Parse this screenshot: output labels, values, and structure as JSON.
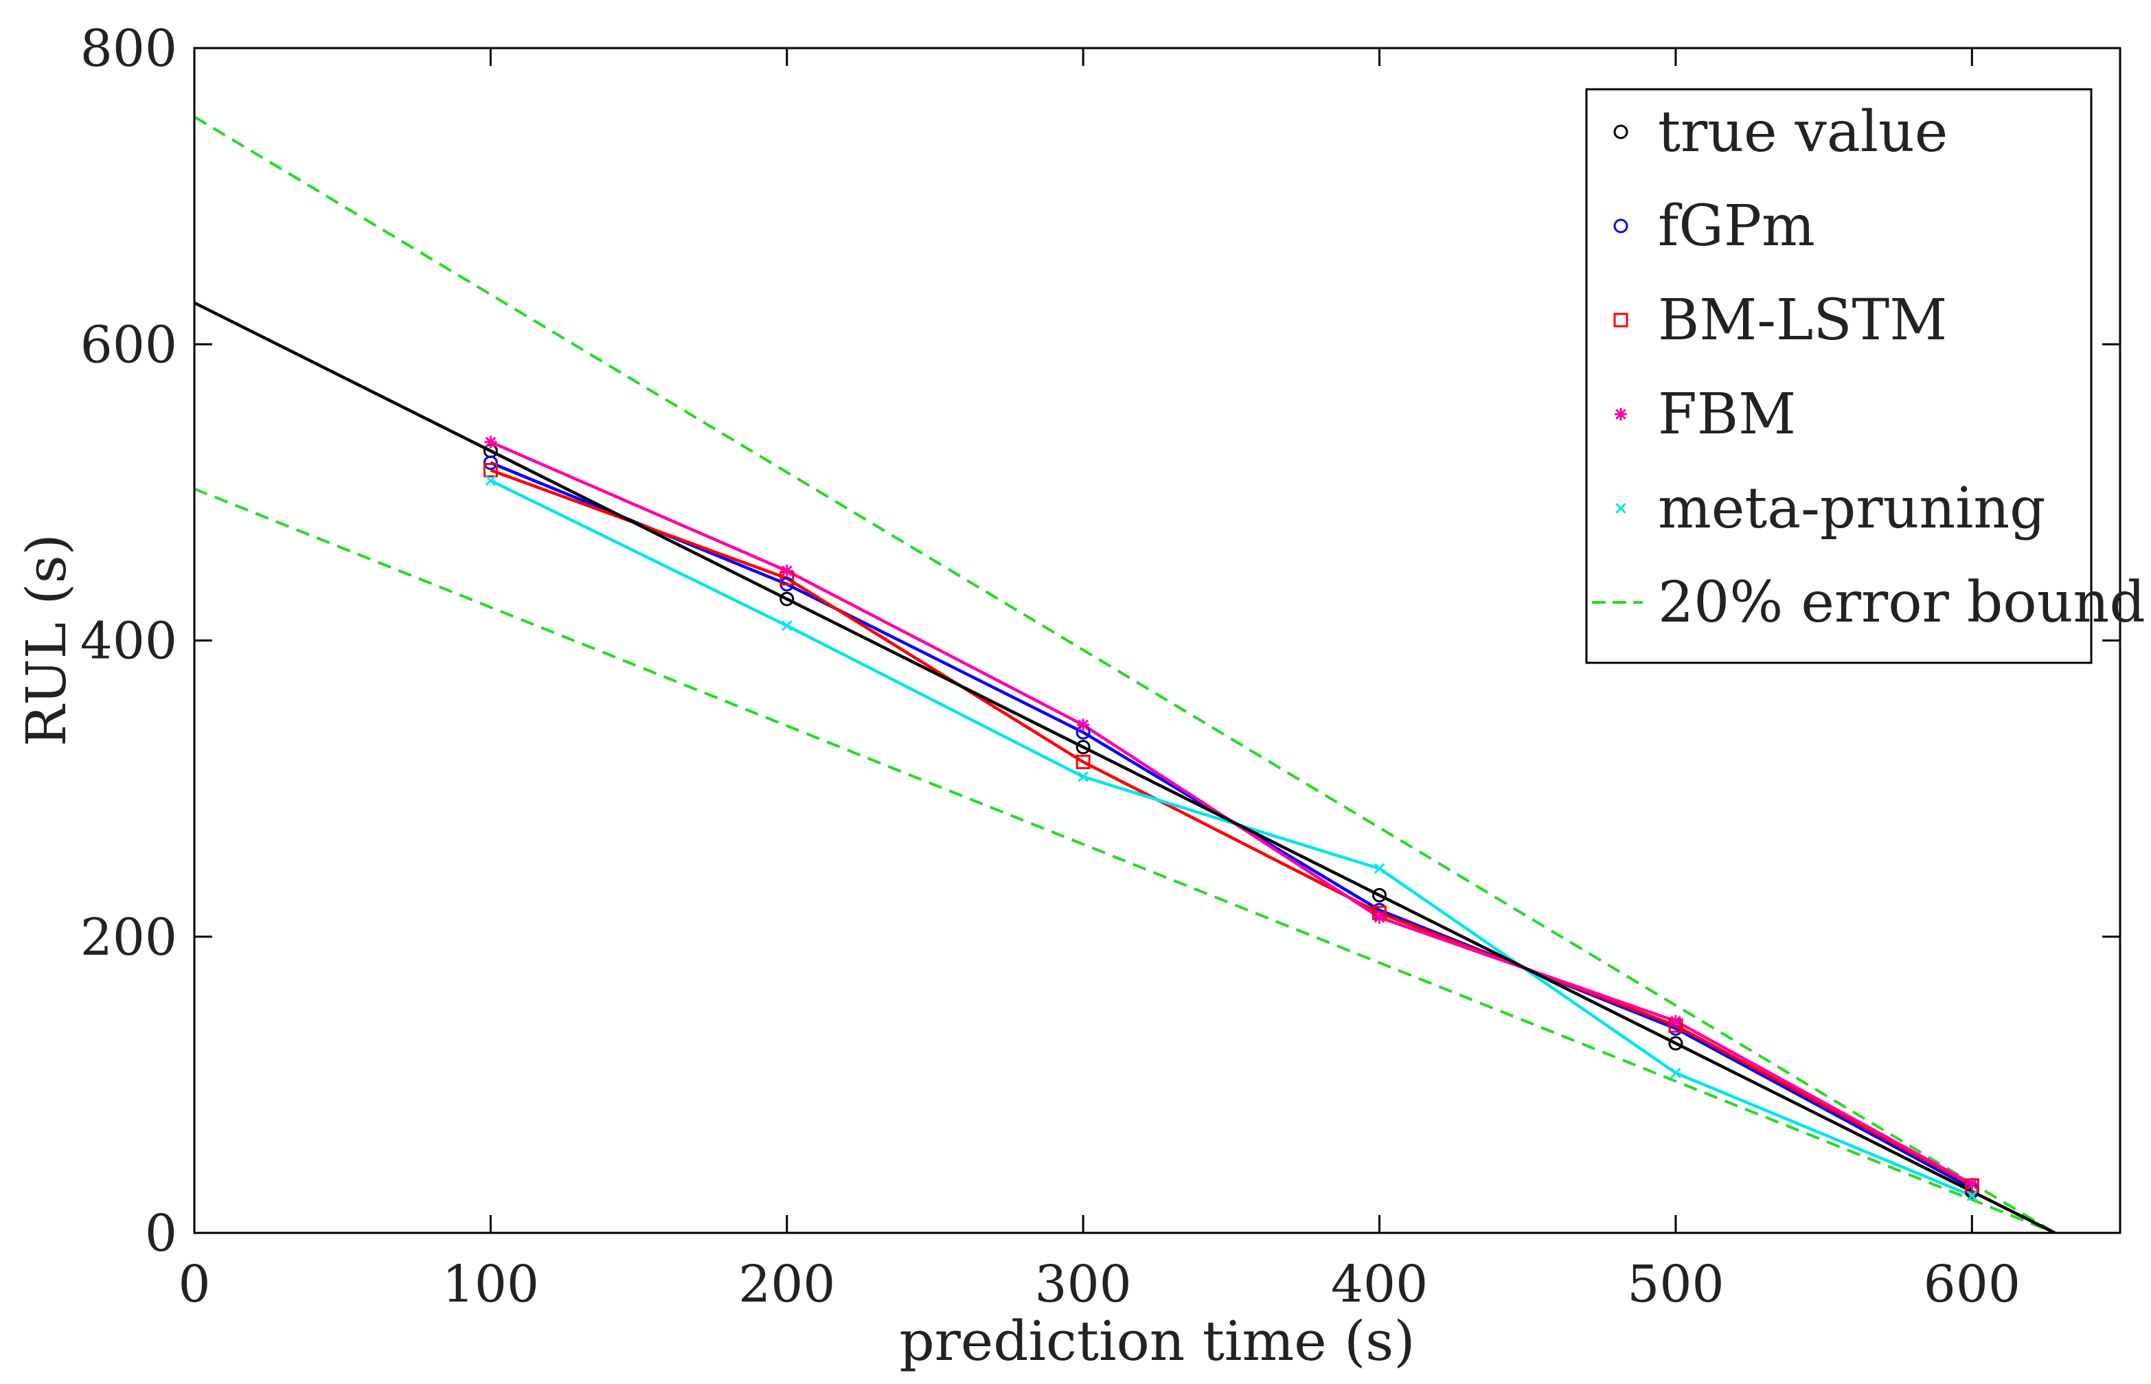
{
  "chart_data": {
    "type": "line",
    "xlabel": "prediction time (s)",
    "ylabel": "RUL (s)",
    "xlim": [
      0,
      650
    ],
    "ylim": [
      0,
      800
    ],
    "xticks": [
      0,
      100,
      200,
      300,
      400,
      500,
      600
    ],
    "yticks": [
      0,
      200,
      400,
      600,
      800
    ],
    "grid": false,
    "legend_position": "top-right",
    "true_line": {
      "x": [
        0,
        628
      ],
      "y": [
        628,
        0
      ],
      "color": "#000000"
    },
    "bounds": {
      "name": "20% error bound",
      "color": "#22dd22",
      "upper": {
        "x": [
          0,
          628
        ],
        "y": [
          753.6,
          0
        ]
      },
      "lower": {
        "x": [
          0,
          628
        ],
        "y": [
          502.4,
          0
        ]
      }
    },
    "series": [
      {
        "name": "true value",
        "marker": "circle",
        "color": "#000000",
        "connect": false,
        "x": [
          100,
          200,
          300,
          400,
          500,
          600
        ],
        "y": [
          528,
          428,
          328,
          228,
          128,
          28
        ]
      },
      {
        "name": "fGPm",
        "marker": "circle",
        "color": "#0000ff",
        "connect": true,
        "x": [
          100,
          200,
          300,
          400,
          500,
          600
        ],
        "y": [
          520,
          438,
          338,
          218,
          138,
          30
        ]
      },
      {
        "name": "BM-LSTM",
        "marker": "square",
        "color": "#ff0000",
        "connect": true,
        "x": [
          100,
          200,
          300,
          400,
          500,
          600
        ],
        "y": [
          515,
          442,
          318,
          216,
          140,
          32
        ]
      },
      {
        "name": "FBM",
        "marker": "asterisk",
        "color": "#ff00aa",
        "connect": true,
        "x": [
          100,
          200,
          300,
          400,
          500,
          600
        ],
        "y": [
          534,
          447,
          343,
          213,
          143,
          33
        ]
      },
      {
        "name": "meta-pruning",
        "marker": "x",
        "color": "#00e5ee",
        "connect": true,
        "x": [
          100,
          200,
          300,
          400,
          500,
          600
        ],
        "y": [
          508,
          410,
          308,
          246,
          108,
          25
        ]
      }
    ]
  }
}
